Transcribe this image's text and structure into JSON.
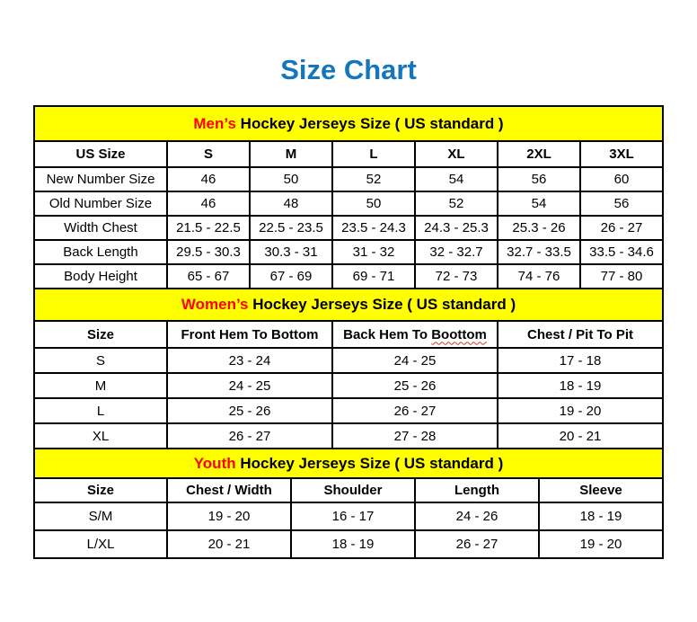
{
  "page_title": "Size Chart",
  "colors": {
    "title_blue": "#1676BC",
    "accent_red": "#FF0000",
    "band_yellow": "#FFFF00",
    "border_black": "#000000",
    "squiggle_red": "#D03A2B"
  },
  "chart_data": [
    {
      "type": "table",
      "title": "Men’s Hockey Jerseys Size ( US standard )",
      "title_highlight": "Men’s",
      "title_rest": "Hockey Jerseys Size ( US standard )",
      "columns": [
        "US Size",
        "S",
        "M",
        "L",
        "XL",
        "2XL",
        "3XL"
      ],
      "rows": [
        {
          "label": "New Number Size",
          "values": [
            "46",
            "50",
            "52",
            "54",
            "56",
            "60"
          ]
        },
        {
          "label": "Old Number Size",
          "values": [
            "46",
            "48",
            "50",
            "52",
            "54",
            "56"
          ]
        },
        {
          "label": "Width Chest",
          "values": [
            "21.5 - 22.5",
            "22.5 - 23.5",
            "23.5 - 24.3",
            "24.3 - 25.3",
            "25.3 - 26",
            "26 - 27"
          ]
        },
        {
          "label": "Back Length",
          "values": [
            "29.5 - 30.3",
            "30.3 - 31",
            "31 - 32",
            "32 - 32.7",
            "32.7 - 33.5",
            "33.5 - 34.6"
          ]
        },
        {
          "label": "Body Height",
          "values": [
            "65 - 67",
            "67 - 69",
            "69 - 71",
            "72 - 73",
            "74 - 76",
            "77 - 80"
          ]
        }
      ]
    },
    {
      "type": "table",
      "title": "Women’s Hockey Jerseys Size ( US standard )",
      "title_highlight": "Women’s",
      "title_rest": "Hockey Jerseys Size ( US standard )",
      "columns": [
        "Size",
        "Front Hem To Bottom",
        "Back Hem To Boottom",
        "Chest / Pit To Pit"
      ],
      "misspelling": {
        "prefix": "Back Hem To",
        "word": "Boottom"
      },
      "rows": [
        {
          "label": "S",
          "values": [
            "23 - 24",
            "24 - 25",
            "17 - 18"
          ]
        },
        {
          "label": "M",
          "values": [
            "24 - 25",
            "25 - 26",
            "18 - 19"
          ]
        },
        {
          "label": "L",
          "values": [
            "25 - 26",
            "26 - 27",
            "19 - 20"
          ]
        },
        {
          "label": "XL",
          "values": [
            "26 - 27",
            "27 - 28",
            "20 - 21"
          ]
        }
      ]
    },
    {
      "type": "table",
      "title": "Youth Hockey Jerseys Size ( US standard )",
      "title_highlight": "Youth",
      "title_rest": "Hockey Jerseys Size ( US standard )",
      "columns": [
        "Size",
        "Chest / Width",
        "Shoulder",
        "Length",
        "Sleeve"
      ],
      "rows": [
        {
          "label": "S/M",
          "values": [
            "19 - 20",
            "16 - 17",
            "24 - 26",
            "18 - 19"
          ]
        },
        {
          "label": "L/XL",
          "values": [
            "20 - 21",
            "18 - 19",
            "26 - 27",
            "19 - 20"
          ]
        }
      ]
    }
  ]
}
